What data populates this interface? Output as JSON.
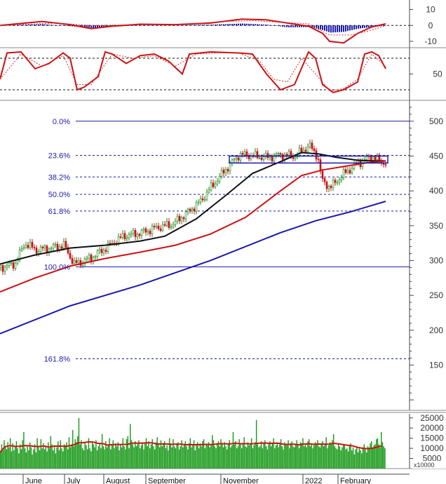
{
  "chart_data": [
    {
      "panel": "macd",
      "type": "line",
      "y_ticks": [
        10,
        0,
        -10
      ],
      "ylim": [
        -14,
        16
      ],
      "grid": "dashed at 0",
      "series": [
        {
          "role": "macd",
          "color": "#cc1111",
          "x": [
            0,
            60,
            100,
            130,
            160,
            200,
            250,
            300,
            345,
            380,
            410,
            440,
            460,
            470,
            490,
            510,
            530,
            550
          ],
          "y": [
            0,
            2.5,
            0.5,
            -2,
            -0.5,
            0.8,
            0.5,
            1.5,
            4,
            3.5,
            1.5,
            -0.5,
            -5,
            -10,
            -11,
            -5,
            -1,
            1
          ]
        },
        {
          "role": "signal",
          "color": "#cc3333",
          "x": [
            0,
            80,
            130,
            200,
            260,
            320,
            360,
            400,
            440,
            470,
            500,
            530,
            550
          ],
          "y": [
            0,
            1.5,
            0,
            0.5,
            0.8,
            2.5,
            3,
            2,
            1,
            -6,
            -6,
            -3,
            0
          ]
        },
        {
          "role": "histogram",
          "color": "#1a1aa8",
          "x": [
            0,
            60,
            100,
            130,
            160,
            200,
            250,
            300,
            345,
            380,
            410,
            440,
            460,
            470,
            490,
            510,
            530,
            550
          ],
          "y": [
            0,
            0.8,
            -0.5,
            -1.5,
            -0.8,
            0.3,
            0.2,
            0.5,
            1.2,
            0.5,
            -1.2,
            -1,
            -3,
            -4.5,
            -4,
            -2,
            -1,
            0
          ]
        }
      ]
    },
    {
      "panel": "stochastic",
      "type": "line",
      "y_ticks": [
        50
      ],
      "ylim": [
        0,
        100
      ],
      "reference_lines": [
        80,
        20
      ],
      "series": [
        {
          "role": "k",
          "color": "#cc1111",
          "x": [
            0,
            10,
            30,
            50,
            70,
            90,
            100,
            110,
            120,
            140,
            150,
            160,
            180,
            200,
            220,
            240,
            260,
            270,
            300,
            340,
            360,
            380,
            400,
            420,
            440,
            450,
            460,
            475,
            490,
            510,
            520,
            530,
            540,
            550
          ],
          "y": [
            40,
            90,
            92,
            60,
            70,
            90,
            80,
            20,
            25,
            45,
            92,
            88,
            70,
            85,
            88,
            75,
            50,
            88,
            92,
            90,
            88,
            50,
            20,
            30,
            92,
            80,
            30,
            15,
            20,
            35,
            88,
            92,
            85,
            60
          ]
        },
        {
          "role": "d",
          "color": "#cc3333",
          "x": [
            0,
            30,
            60,
            90,
            110,
            130,
            160,
            190,
            220,
            250,
            280,
            310,
            340,
            370,
            390,
            410,
            430,
            450,
            470,
            490,
            510,
            530,
            550
          ],
          "y": [
            40,
            88,
            65,
            85,
            30,
            30,
            88,
            80,
            85,
            65,
            88,
            90,
            90,
            75,
            40,
            35,
            80,
            50,
            18,
            22,
            40,
            88,
            65
          ]
        }
      ]
    },
    {
      "panel": "price",
      "type": "candlestick",
      "y_ticks": [
        500,
        450,
        400,
        350,
        300,
        250,
        200,
        150
      ],
      "ylim": [
        85,
        530
      ],
      "x_ticks": [
        "June",
        "July",
        "August",
        "September",
        "November",
        "2022",
        "February"
      ],
      "fibonacci_levels": [
        {
          "label": "0.0%",
          "value": 500
        },
        {
          "label": "23.6%",
          "value": 451
        },
        {
          "label": "38.2%",
          "value": 420
        },
        {
          "label": "50.0%",
          "value": 395
        },
        {
          "label": "61.8%",
          "value": 371
        },
        {
          "label": "100.0%",
          "value": 291
        },
        {
          "label": "161.8%",
          "value": 159
        }
      ],
      "box": {
        "x_start": 327,
        "x_end": 553,
        "y_low": 440,
        "y_high": 450
      },
      "close_line": {
        "x": [
          0,
          20,
          35,
          50,
          70,
          90,
          105,
          115,
          130,
          150,
          175,
          200,
          225,
          245,
          265,
          285,
          300,
          320,
          340,
          360,
          380,
          400,
          420,
          440,
          452,
          458,
          470,
          490,
          510,
          530,
          540,
          550
        ],
        "y": [
          290,
          295,
          325,
          315,
          318,
          322,
          295,
          298,
          305,
          318,
          335,
          340,
          348,
          352,
          368,
          385,
          405,
          430,
          452,
          450,
          448,
          452,
          450,
          465,
          450,
          415,
          405,
          425,
          440,
          450,
          443,
          440
        ]
      },
      "series": [
        {
          "name": "",
          "color": "#111111",
          "x": [
            0,
            50,
            100,
            150,
            200,
            235,
            280,
            320,
            360,
            400,
            430,
            455,
            480,
            510,
            530,
            550
          ],
          "y": [
            295,
            308,
            318,
            322,
            328,
            335,
            360,
            392,
            425,
            442,
            455,
            453,
            448,
            444,
            443,
            443
          ]
        },
        {
          "name": "",
          "color": "#cc1111",
          "x": [
            0,
            50,
            100,
            150,
            200,
            250,
            300,
            350,
            400,
            430,
            460,
            490,
            520,
            550
          ],
          "y": [
            255,
            275,
            292,
            303,
            312,
            322,
            338,
            362,
            400,
            422,
            430,
            435,
            440,
            443
          ]
        },
        {
          "name": "",
          "color": "#1a1aa8",
          "x": [
            0,
            100,
            200,
            300,
            400,
            450,
            500,
            550
          ],
          "y": [
            195,
            235,
            265,
            300,
            340,
            357,
            370,
            385
          ]
        }
      ]
    },
    {
      "panel": "volume",
      "type": "bar",
      "unit_label": "x10000",
      "y_ticks": [
        25000,
        20000,
        15000,
        10000,
        5000
      ],
      "ylim": [
        0,
        27000
      ],
      "values": [
        8000,
        12000,
        9000,
        14000,
        11000,
        9500,
        13000,
        10500,
        15000,
        8500,
        12500,
        9000,
        11000,
        13500,
        10000,
        7500,
        12000,
        9500,
        14000,
        18000,
        10000,
        8000,
        11500,
        9000,
        13000,
        10500,
        7000,
        9500,
        12000,
        8000,
        15000,
        11000,
        9000,
        14500,
        10000,
        12500,
        9500,
        11000,
        8500,
        13000,
        10000,
        16000,
        12000,
        9000,
        11500,
        7500,
        10500,
        13500,
        9000,
        14000,
        10000,
        8500,
        12000,
        11000,
        13000,
        9500,
        15500,
        10500,
        12000,
        19000,
        11000,
        14500,
        13000,
        16000,
        25000,
        12000,
        14000,
        10000,
        9000,
        13000,
        11500,
        9500,
        15000,
        10000,
        8500,
        13500,
        12000,
        10500,
        14000,
        9000,
        11000,
        12500,
        10000,
        17000,
        11000,
        9500,
        13500,
        10500,
        12000,
        15000,
        9500,
        11500,
        14000,
        10000,
        12500,
        11000,
        13000,
        9000,
        12000,
        10500,
        15000,
        11000,
        9500,
        14500,
        16000,
        10000,
        22000,
        14000,
        12000,
        10500,
        13500,
        11000,
        12000,
        14000,
        10000,
        11500,
        13000,
        9500,
        12500,
        15000,
        11000,
        13500,
        10000,
        12000,
        14500,
        11000,
        9500,
        13000,
        15500,
        12000,
        10500,
        14000,
        11000,
        12500,
        13500,
        10000,
        11500,
        9000,
        15000,
        12000,
        10500,
        14500,
        11000,
        10000,
        12500,
        13000,
        9500,
        11000,
        14000,
        10500,
        12000,
        13500,
        11000,
        9500,
        12500,
        15000,
        10500,
        12000,
        14000,
        9000,
        11500,
        13000,
        10000,
        12500,
        11000,
        13500,
        14500,
        10000,
        12000,
        11500,
        13000,
        10500,
        12000,
        16500,
        14000,
        11000,
        10000,
        12500,
        13500,
        11000,
        14500,
        12000,
        10500,
        13000,
        11000,
        9500,
        12500,
        14000,
        10500,
        11500,
        18000,
        12000,
        13500,
        10000,
        11000,
        14500,
        12500,
        10000,
        12000,
        15500,
        11000,
        10500,
        13000,
        11500,
        12000,
        15000,
        10000,
        11500,
        13000,
        24000,
        12000,
        10500,
        11000,
        13500,
        10000,
        12500,
        14000,
        11000,
        9500,
        12000,
        13500,
        11000,
        12500,
        15000,
        10000,
        11500,
        13000,
        10500,
        12000,
        14500,
        11000,
        9500,
        13000,
        12000,
        11500,
        14000,
        10000,
        12500,
        13500,
        11000,
        10500,
        12000,
        14000,
        11500,
        10000,
        13000,
        12500,
        15000,
        11000,
        12000,
        10500,
        13500,
        14500,
        11000,
        12000,
        10000,
        11500,
        13000,
        12000,
        14000,
        11000,
        10500,
        12500,
        13500,
        11000,
        12000,
        15500,
        10000,
        11500,
        13000,
        12000,
        14000,
        17000,
        11000,
        10000,
        9500,
        12500,
        11000,
        9000,
        10500,
        12000,
        11500,
        9500,
        10000,
        8500,
        11000,
        12500,
        9000,
        10500,
        7000,
        9500,
        11000,
        8000,
        10000,
        9000,
        7500,
        10500,
        12000,
        9500,
        8000,
        11000,
        10000,
        12500,
        13500,
        10000,
        11500,
        12000,
        14500,
        15000,
        12000,
        10500,
        18000,
        13000,
        11000,
        10000
      ]
    }
  ]
}
